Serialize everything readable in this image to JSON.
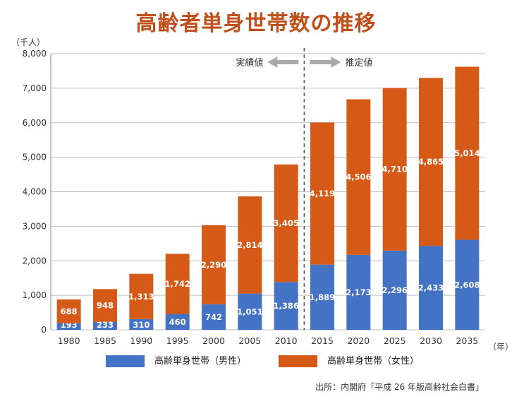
{
  "title": "高齢者単身世帯数の推移",
  "source": "出所：内閣府「平成 26 年版高齢社会白書」",
  "colors": {
    "male": "#4472c4",
    "female": "#d55a18",
    "grid": "#bfbfbf",
    "axis": "#888888",
    "arrow": "#aaaaaa"
  },
  "chart_data": {
    "type": "bar",
    "stacked": true,
    "categories": [
      "1980",
      "1985",
      "1990",
      "1995",
      "2000",
      "2005",
      "2010",
      "2015",
      "2020",
      "2025",
      "2030",
      "2035"
    ],
    "series": [
      {
        "name": "高齢単身世帯（男性）",
        "color": "#4472c4",
        "values": [
          193,
          233,
          310,
          460,
          742,
          1051,
          1386,
          1889,
          2173,
          2296,
          2433,
          2608
        ],
        "labels": [
          "193",
          "233",
          "310",
          "460",
          "742",
          "1,051",
          "1,386",
          "1,889",
          "2,173",
          "2,296",
          "2,433",
          "2,608"
        ]
      },
      {
        "name": "高齢単身世帯（女性）",
        "color": "#d55a18",
        "values": [
          688,
          948,
          1313,
          1742,
          2290,
          2814,
          3405,
          4119,
          4506,
          4710,
          4865,
          5014
        ],
        "labels": [
          "688",
          "948",
          "1,313",
          "1,742",
          "2,290",
          "2,814",
          "3,405",
          "4,119",
          "4,506",
          "4,710",
          "4,865",
          "5,014"
        ]
      }
    ],
    "ylim": [
      0,
      8000
    ],
    "yticks": [
      0,
      1000,
      2000,
      3000,
      4000,
      5000,
      6000,
      7000,
      8000
    ],
    "ytick_labels": [
      "0",
      "1,000",
      "2,000",
      "3,000",
      "4,000",
      "5,000",
      "6,000",
      "7,000",
      "8,000"
    ],
    "y_unit": "（千人）",
    "x_unit": "（年）",
    "grid": true,
    "legend": "bottom",
    "divider_between": [
      "2010",
      "2015"
    ],
    "annotation_left": "実績値",
    "annotation_right": "推定値"
  }
}
